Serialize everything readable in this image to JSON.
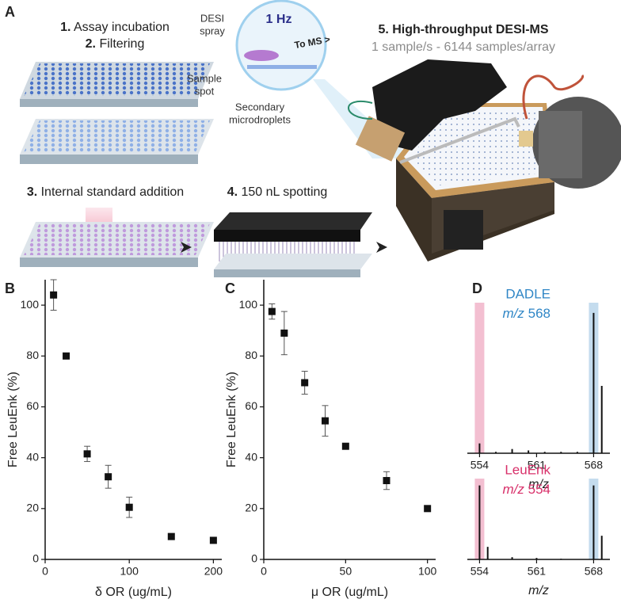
{
  "panel_a": {
    "label": "A",
    "steps": [
      {
        "number": "1.",
        "text": "Assay incubation"
      },
      {
        "number": "2.",
        "text": "Filtering"
      },
      {
        "number": "3.",
        "text": "Internal standard addition"
      },
      {
        "number": "4.",
        "text": "150 nL spotting"
      },
      {
        "number": "5.",
        "text": "High-throughput DESI-MS"
      }
    ],
    "subtitle": "1 sample/s - 6144 samples/array",
    "inset": {
      "rate": "1 Hz",
      "spray": [
        "DESI",
        "spray"
      ],
      "to_ms": "To MS >",
      "spot": [
        "Sample",
        "spot"
      ],
      "droplets": [
        "Secondary",
        "microdroplets"
      ]
    }
  },
  "chart_data": [
    {
      "panel": "B",
      "type": "scatter",
      "color": "#111111",
      "x": [
        10,
        25,
        50,
        75,
        100,
        150,
        200
      ],
      "values": [
        104,
        80,
        41.5,
        32.5,
        20.5,
        9,
        7.5
      ],
      "errors": [
        6,
        0,
        3,
        4.5,
        4,
        0,
        0
      ],
      "xlim": [
        0,
        210
      ],
      "xticks": [
        0,
        100,
        200
      ],
      "ylim": [
        0,
        110
      ],
      "yticks": [
        0,
        20,
        40,
        60,
        80,
        100
      ],
      "xlabel": "δ OR (ug/mL)",
      "ylabel": "Free LeuEnk (%)"
    },
    {
      "panel": "C",
      "type": "scatter",
      "color": "#111111",
      "x": [
        5,
        12.5,
        25,
        37.5,
        50,
        75,
        100
      ],
      "values": [
        97.5,
        89,
        69.5,
        54.5,
        44.5,
        31,
        20
      ],
      "errors": [
        3,
        8.5,
        4.5,
        6,
        0,
        3.5,
        0
      ],
      "xlim": [
        0,
        105
      ],
      "xticks": [
        0,
        50,
        100
      ],
      "ylim": [
        0,
        110
      ],
      "yticks": [
        0,
        20,
        40,
        60,
        80,
        100
      ],
      "xlabel": "μ OR (ug/mL)",
      "ylabel": "Free LeuEnk (%)"
    },
    {
      "panel": "D",
      "type": "stem",
      "color": "#111111",
      "x": [
        554,
        556,
        558,
        560,
        562,
        564,
        566,
        568,
        569
      ],
      "values": [
        7,
        1,
        3,
        2,
        1,
        1,
        1,
        100,
        48
      ],
      "xlim": [
        552.5,
        570
      ],
      "xticks": [
        554,
        561,
        568
      ],
      "ylim": [
        0,
        105
      ],
      "xlabel": "m/z",
      "compound": "DADLE",
      "compound_color": "#2f86c6",
      "mz_label": "m/z",
      "mz": 568,
      "highlights": [
        554,
        568
      ],
      "highlight_colors": [
        "#f3bfd1",
        "#c4dcee"
      ]
    },
    {
      "type": "stem",
      "color": "#111111",
      "x": [
        554,
        555,
        558,
        561,
        564,
        568,
        569
      ],
      "values": [
        100,
        17,
        3,
        2,
        1,
        100,
        32
      ],
      "xlim": [
        552.5,
        570
      ],
      "xticks": [
        554,
        561,
        568
      ],
      "ylim": [
        0,
        105
      ],
      "xlabel": "m/z",
      "compound": "LeuEnk",
      "compound_color": "#d8306a",
      "mz_label": "m/z",
      "mz": 554,
      "highlights": [
        554,
        568
      ],
      "highlight_colors": [
        "#f3bfd1",
        "#c4dcee"
      ]
    }
  ]
}
